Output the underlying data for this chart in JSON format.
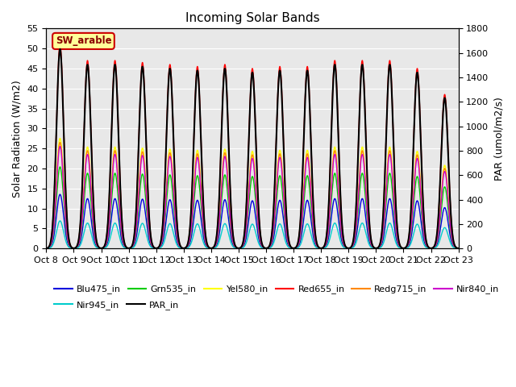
{
  "title": "Incoming Solar Bands",
  "ylabel_left": "Solar Radiation (W/m2)",
  "ylabel_right": "PAR (umol/m2/s)",
  "ylim_left": [
    0,
    55
  ],
  "ylim_right": [
    0,
    1800
  ],
  "yticks_left": [
    0,
    5,
    10,
    15,
    20,
    25,
    30,
    35,
    40,
    45,
    50,
    55
  ],
  "yticks_right": [
    0,
    200,
    400,
    600,
    800,
    1000,
    1200,
    1400,
    1600,
    1800
  ],
  "n_days": 15,
  "background_color": "#e8e8e8",
  "annotation_text": "SW_arable",
  "annotation_color": "#8b0000",
  "annotation_bg": "#ffff99",
  "annotation_border": "#cc0000",
  "lines": [
    {
      "label": "Blu475_in",
      "color": "#0000dd",
      "lw": 1.0,
      "peak_ratio": 0.265,
      "par_scale": 0.0
    },
    {
      "label": "Grn535_in",
      "color": "#00cc00",
      "lw": 1.0,
      "peak_ratio": 0.4,
      "par_scale": 0.0
    },
    {
      "label": "Yel580_in",
      "color": "#ffff00",
      "lw": 1.0,
      "peak_ratio": 0.54,
      "par_scale": 0.0
    },
    {
      "label": "Red655_in",
      "color": "#ff0000",
      "lw": 1.0,
      "peak_ratio": 1.0,
      "par_scale": 0.0
    },
    {
      "label": "Redg715_in",
      "color": "#ff8800",
      "lw": 1.0,
      "peak_ratio": 0.52,
      "par_scale": 0.0
    },
    {
      "label": "Nir840_in",
      "color": "#cc00cc",
      "lw": 1.0,
      "peak_ratio": 0.5,
      "par_scale": 0.0
    },
    {
      "label": "Nir945_in",
      "color": "#00cccc",
      "lw": 1.0,
      "peak_ratio": 0.135,
      "par_scale": 0.0
    },
    {
      "label": "PAR_in",
      "color": "#000000",
      "lw": 1.5,
      "peak_ratio": 1.0,
      "par_scale": 32.0
    }
  ],
  "day_peaks_left": [
    51.0,
    47.0,
    47.0,
    46.5,
    46.0,
    45.5,
    46.0,
    45.0,
    45.5,
    45.5,
    47.0,
    47.0,
    47.0,
    45.0,
    38.5
  ],
  "xticklabels": [
    "Oct 8",
    "Oct 9",
    "Oct 10",
    "Oct 11",
    "Oct 12",
    "Oct 13",
    "Oct 14",
    "Oct 15",
    "Oct 16",
    "Oct 17",
    "Oct 18",
    "Oct 19",
    "Oct 20",
    "Oct 21",
    "Oct 22",
    "Oct 23"
  ],
  "legend_row1": [
    {
      "label": "Blu475_in",
      "color": "#0000dd"
    },
    {
      "label": "Grn535_in",
      "color": "#00cc00"
    },
    {
      "label": "Yel580_in",
      "color": "#ffff00"
    },
    {
      "label": "Red655_in",
      "color": "#ff0000"
    },
    {
      "label": "Redg715_in",
      "color": "#ff8800"
    },
    {
      "label": "Nir840_in",
      "color": "#cc00cc"
    }
  ],
  "legend_row2": [
    {
      "label": "Nir945_in",
      "color": "#00cccc"
    },
    {
      "label": "PAR_in",
      "color": "#000000"
    }
  ]
}
